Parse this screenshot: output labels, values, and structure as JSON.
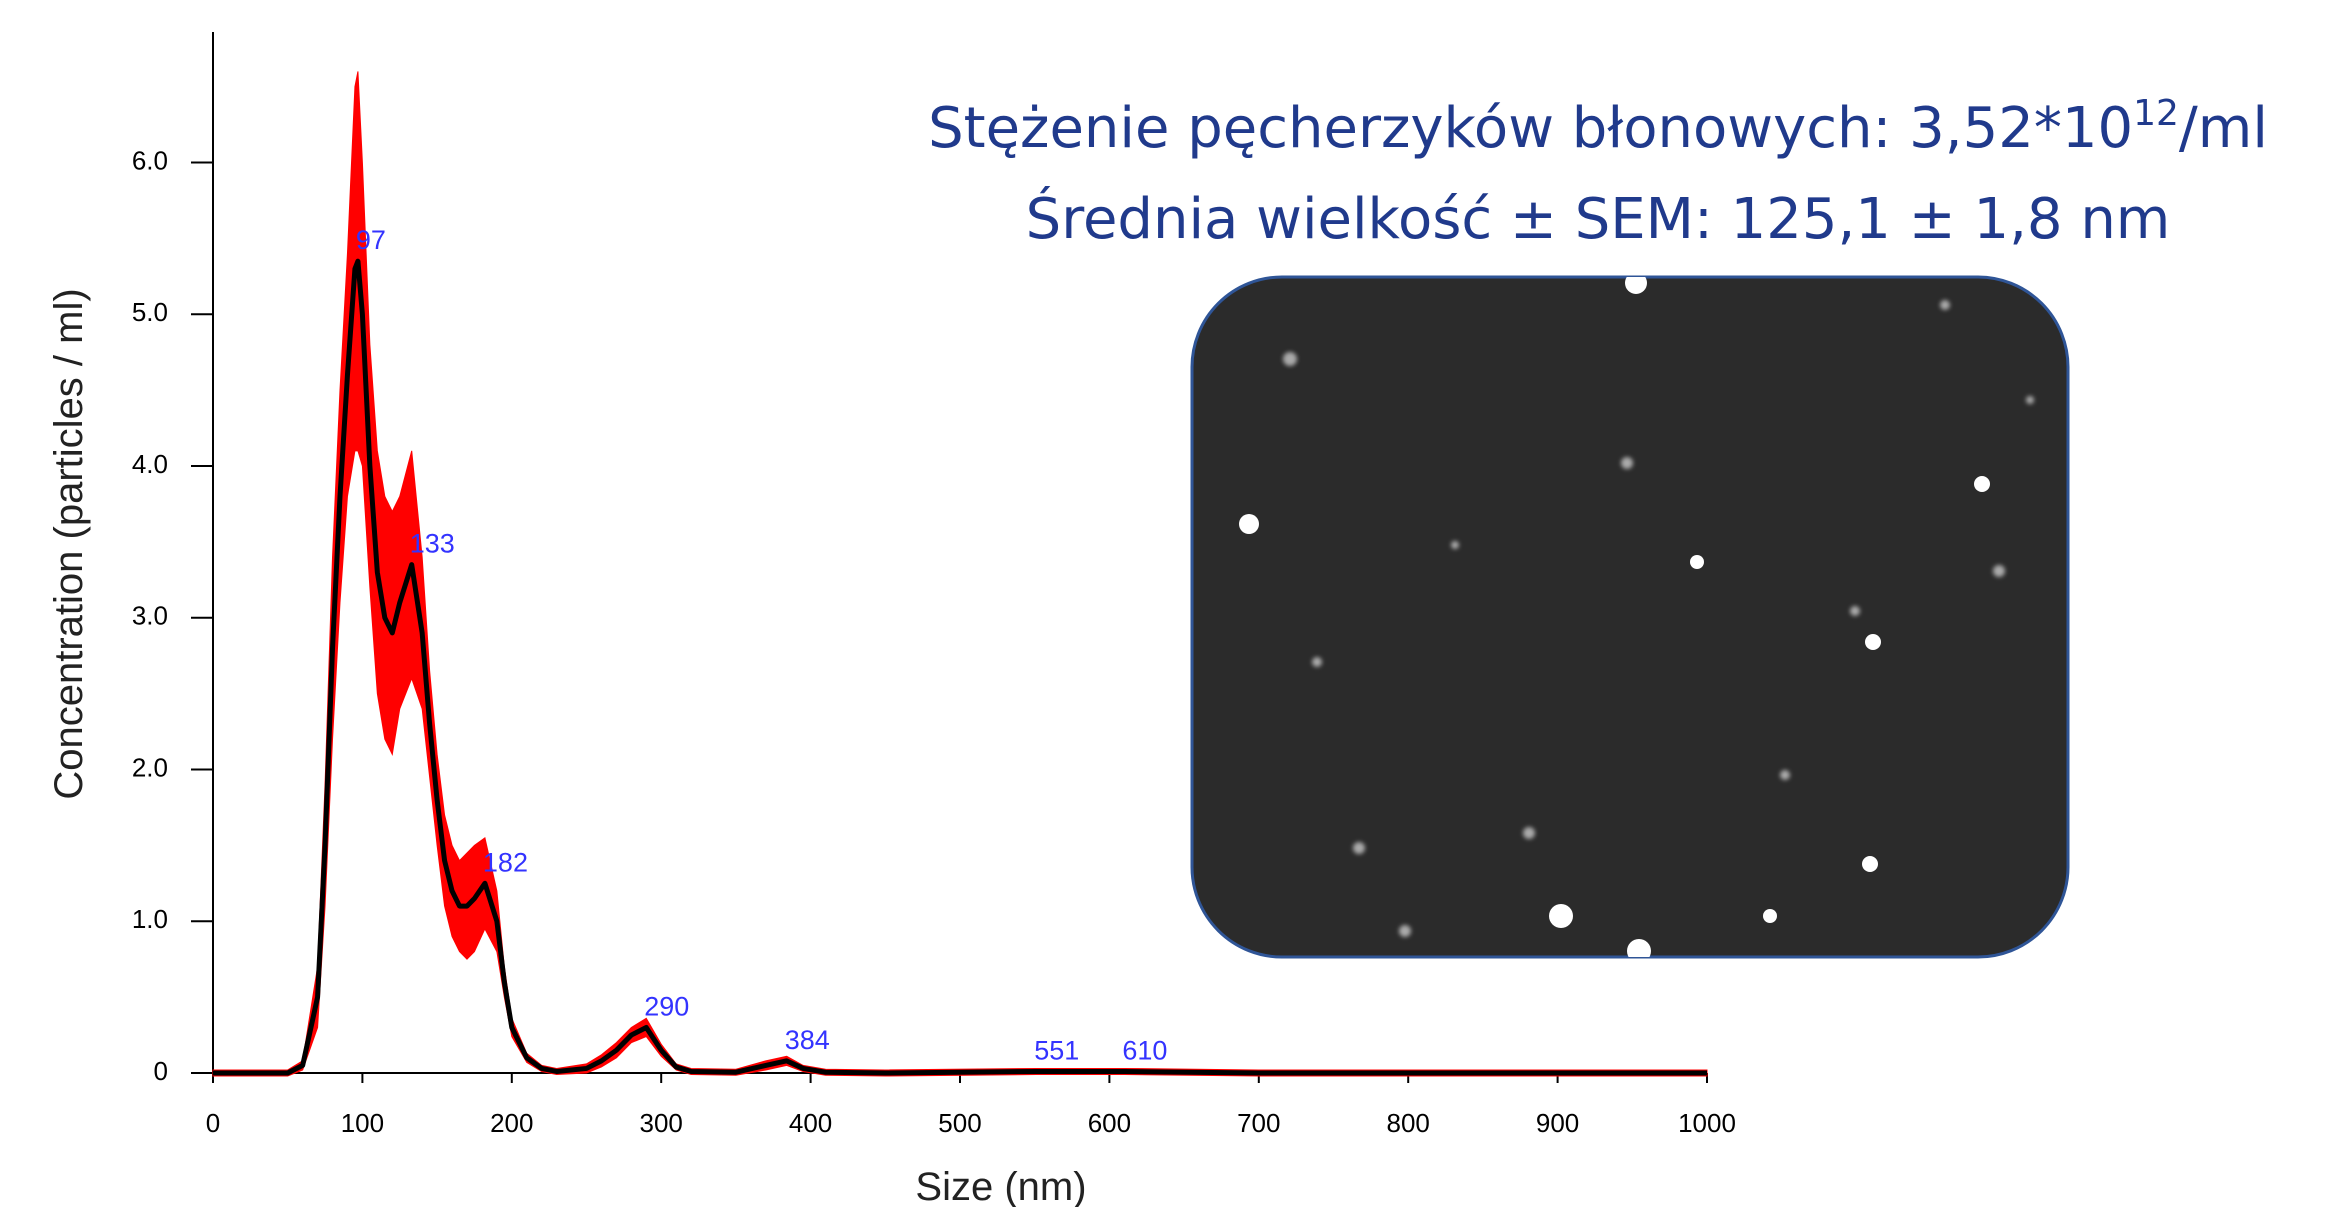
{
  "chart_data": {
    "type": "line",
    "x": [
      0,
      45,
      50,
      60,
      70,
      75,
      80,
      85,
      90,
      95,
      97,
      100,
      105,
      110,
      115,
      120,
      125,
      133,
      140,
      145,
      150,
      155,
      160,
      165,
      170,
      175,
      182,
      190,
      195,
      200,
      210,
      220,
      230,
      250,
      260,
      270,
      280,
      290,
      300,
      310,
      320,
      350,
      370,
      384,
      395,
      410,
      450,
      551,
      610,
      700,
      1000
    ],
    "values": [
      0,
      0,
      0,
      0.05,
      0.5,
      1.5,
      2.8,
      3.8,
      4.6,
      5.3,
      5.35,
      5.0,
      4.0,
      3.3,
      3.0,
      2.9,
      3.1,
      3.35,
      2.9,
      2.3,
      1.8,
      1.4,
      1.2,
      1.1,
      1.1,
      1.15,
      1.25,
      1.0,
      0.6,
      0.3,
      0.1,
      0.03,
      0.01,
      0.03,
      0.08,
      0.15,
      0.25,
      0.3,
      0.15,
      0.04,
      0.01,
      0.005,
      0.05,
      0.08,
      0.03,
      0.005,
      0,
      0.01,
      0.01,
      0,
      0
    ],
    "errors": [
      0.02,
      0.02,
      0.02,
      0.03,
      0.2,
      0.4,
      0.6,
      0.7,
      0.8,
      1.2,
      1.25,
      1.0,
      0.8,
      0.8,
      0.8,
      0.8,
      0.7,
      0.75,
      0.5,
      0.35,
      0.3,
      0.3,
      0.3,
      0.3,
      0.35,
      0.35,
      0.3,
      0.2,
      0.1,
      0.06,
      0.03,
      0.02,
      0.02,
      0.03,
      0.04,
      0.05,
      0.05,
      0.06,
      0.04,
      0.02,
      0.02,
      0.02,
      0.03,
      0.03,
      0.02,
      0.02,
      0.02,
      0.02,
      0.02,
      0.02,
      0.02
    ],
    "line_color": "#000000",
    "band_color": "#ff0000",
    "peaks": [
      97,
      133,
      182,
      290,
      384,
      551,
      610
    ],
    "peak_color": "#3333ff",
    "xlim": [
      0,
      1000
    ],
    "xticks": [
      0,
      100,
      200,
      300,
      400,
      500,
      600,
      700,
      800,
      900,
      1000
    ],
    "ylim": [
      0,
      6.86
    ],
    "yticks": [
      0,
      {
        "value": 1,
        "label": "1.0"
      },
      {
        "value": 2,
        "label": "2.0"
      },
      {
        "value": 3,
        "label": "3.0"
      },
      {
        "value": 4,
        "label": "4.0"
      },
      {
        "value": 5,
        "label": "5.0"
      },
      {
        "value": 6,
        "label": "6.0"
      }
    ],
    "xlabel": "Size (nm)",
    "ylabel": "Concentration (particles / ml)",
    "annotation": {
      "line1": "Stężenie pęcherzyków błonowych: 3,52*10",
      "line1_sup": "12",
      "line1_end": "/ml",
      "line2": "Średnia wielkość ± SEM: 125,1 ± 1,8 nm"
    }
  }
}
